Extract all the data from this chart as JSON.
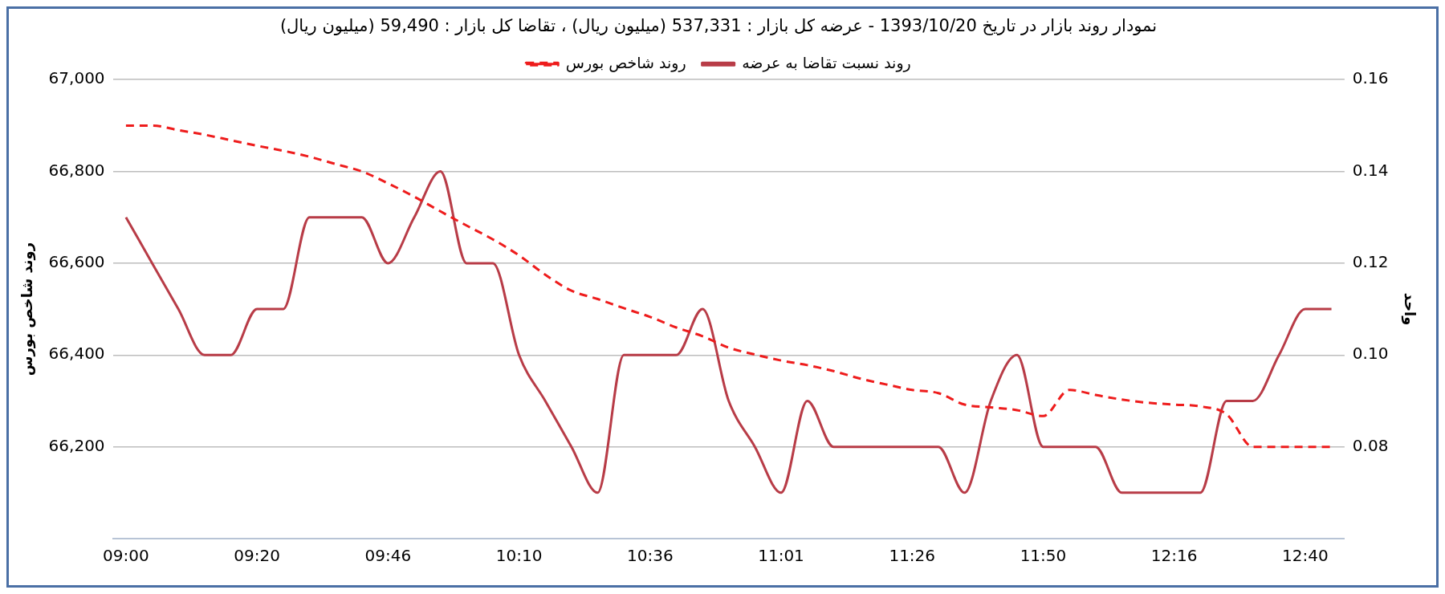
{
  "chart_data": {
    "type": "line",
    "title": "نمودار روند بازار در تاریخ 1393/10/20 - عرضه کل بازار : 537,331 (میلیون ریال) ، تقاضا کل بازار : 59,490 (میلیون ریال)",
    "ylabel": "روند شاخص بورس",
    "y2label": "واحد",
    "categories": [
      "09:00",
      null,
      null,
      null,
      null,
      "09:20",
      null,
      null,
      null,
      null,
      "09:46",
      null,
      null,
      null,
      null,
      "10:10",
      null,
      null,
      null,
      null,
      "10:36",
      null,
      null,
      null,
      null,
      "11:01",
      null,
      null,
      null,
      null,
      "11:26",
      null,
      null,
      null,
      null,
      "11:50",
      null,
      null,
      null,
      null,
      "12:16",
      null,
      null,
      null,
      null,
      "12:40",
      null
    ],
    "series": [
      {
        "name": "روند شاخص بورس",
        "color": "#ee1c1c",
        "axis": "y",
        "line_style": "dashed",
        "values": [
          66900,
          66900,
          66890,
          66880,
          66868,
          66856,
          66845,
          66832,
          66816,
          66800,
          66774,
          66745,
          66713,
          66682,
          66652,
          66617,
          66575,
          66540,
          66522,
          66502,
          66483,
          66460,
          66441,
          66416,
          66401,
          66388,
          66378,
          66365,
          66349,
          66336,
          66324,
          66317,
          66292,
          66286,
          66280,
          66267,
          66324,
          66313,
          66303,
          66296,
          66292,
          66288,
          66271,
          66200,
          66200,
          66200,
          66200
        ]
      },
      {
        "name": "روند نسبت تقاضا به عرضه",
        "color": "#b83c47",
        "axis": "y2",
        "line_style": "solid",
        "values": [
          0.13,
          0.12,
          0.11,
          0.1,
          0.1,
          0.11,
          0.11,
          0.13,
          0.13,
          0.13,
          0.12,
          0.13,
          0.14,
          0.12,
          0.12,
          0.1,
          0.09,
          0.08,
          0.07,
          0.1,
          0.1,
          0.1,
          0.11,
          0.09,
          0.08,
          0.07,
          0.09,
          0.08,
          0.08,
          0.08,
          0.08,
          0.08,
          0.07,
          0.09,
          0.1,
          0.08,
          0.08,
          0.08,
          0.07,
          0.07,
          0.07,
          0.07,
          0.09,
          0.09,
          0.1,
          0.11,
          0.11
        ]
      }
    ],
    "ylim": [
      66000,
      67000
    ],
    "yticks": [
      {
        "value": 66200,
        "label": "66,200"
      },
      {
        "value": 66400,
        "label": "66,400"
      },
      {
        "value": 66600,
        "label": "66,600"
      },
      {
        "value": 66800,
        "label": "66,800"
      },
      {
        "value": 67000,
        "label": "67,000"
      }
    ],
    "y2lim": [
      0.06,
      0.16
    ],
    "y2ticks": [
      0.08,
      {
        "value": 0.1,
        "label": "0.10"
      },
      0.12,
      0.14,
      0.16
    ],
    "grid": "y",
    "legend": "top",
    "marker": "none"
  }
}
